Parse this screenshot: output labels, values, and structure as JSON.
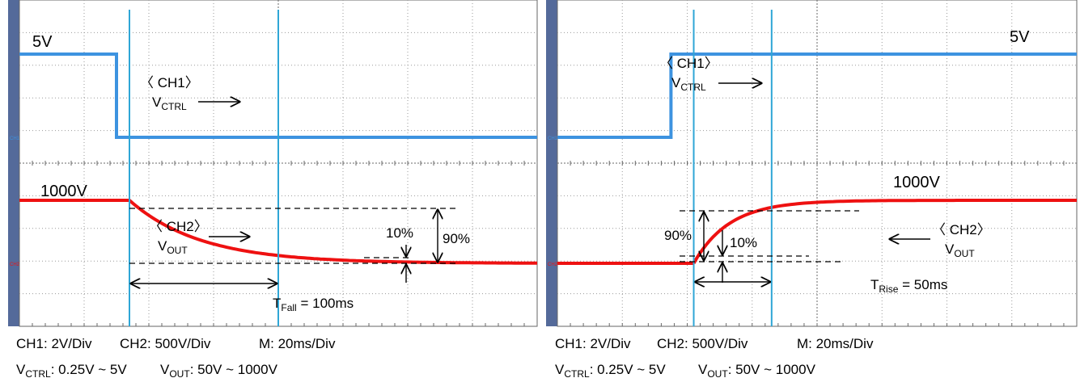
{
  "chart_data": [
    {
      "type": "line",
      "title": "",
      "panel": "fall",
      "x_unit_per_div": 20,
      "xlim": [
        -80,
        80
      ],
      "series": [
        {
          "name": "CH1",
          "color": "#3d93e0",
          "x": [
            -80,
            -50,
            -50,
            80
          ],
          "y": [
            5,
            5,
            0.25,
            0.25
          ]
        },
        {
          "name": "CH2",
          "color": "#ee1111",
          "kind": "fall",
          "x": [
            -80,
            -46,
            80
          ],
          "y": [
            1000,
            1000,
            50
          ]
        }
      ],
      "labels": {
        "ch1_level": "5V",
        "ch2_level": "1000V",
        "ch1_name": "〈 CH1〉",
        "ch1_sig_main": "V",
        "ch1_sig_sub": "CTRL",
        "ch2_name": "〈 CH2〉",
        "ch2_sig_main": "V",
        "ch2_sig_sub": "OUT",
        "pct_low": "10%",
        "pct_high": "90%",
        "time_main": "T",
        "time_sub": "Fall",
        "time_val": " = 100ms",
        "ch1_marker": "CH1",
        "ch2_marker": "CH2"
      },
      "time_interval": [
        -46,
        0
      ]
    },
    {
      "type": "line",
      "title": "",
      "panel": "rise",
      "x_unit_per_div": 20,
      "xlim": [
        -80,
        80
      ],
      "series": [
        {
          "name": "CH1",
          "color": "#3d93e0",
          "x": [
            -80,
            -45,
            -45,
            80
          ],
          "y": [
            0.25,
            0.25,
            5,
            5
          ]
        },
        {
          "name": "CH2",
          "color": "#ee1111",
          "kind": "rise",
          "x": [
            -80,
            -38,
            80
          ],
          "y": [
            50,
            50,
            1000
          ]
        }
      ],
      "labels": {
        "ch1_level": "5V",
        "ch2_level": "1000V",
        "ch1_name": "〈 CH1〉",
        "ch1_sig_main": "V",
        "ch1_sig_sub": "CTRL",
        "ch2_name": "〈 CH2〉",
        "ch2_sig_main": "V",
        "ch2_sig_sub": "OUT",
        "pct_low": "10%",
        "pct_high": "90%",
        "time_main": "T",
        "time_sub": "Rise",
        "time_val": " = 50ms",
        "ch1_marker": "CH1",
        "ch2_marker": "CH2"
      },
      "time_interval": [
        -38,
        -14
      ]
    }
  ],
  "captions": {
    "ch1_scale": "CH1: 2V/Div",
    "ch2_scale": "CH2: 500V/Div",
    "time_scale": "M: 20ms/Div",
    "vctrl_main": "V",
    "vctrl_sub": "CTRL",
    "vctrl_range": ": 0.25V ~ 5V",
    "vout_main": "V",
    "vout_sub": "OUT",
    "vout_range": ": 50V ~ 1000V"
  },
  "colors": {
    "ch1": "#3d93e0",
    "ch2": "#ee1111",
    "cursor": "#2fa6d6",
    "side_bar": "#546a9a"
  }
}
